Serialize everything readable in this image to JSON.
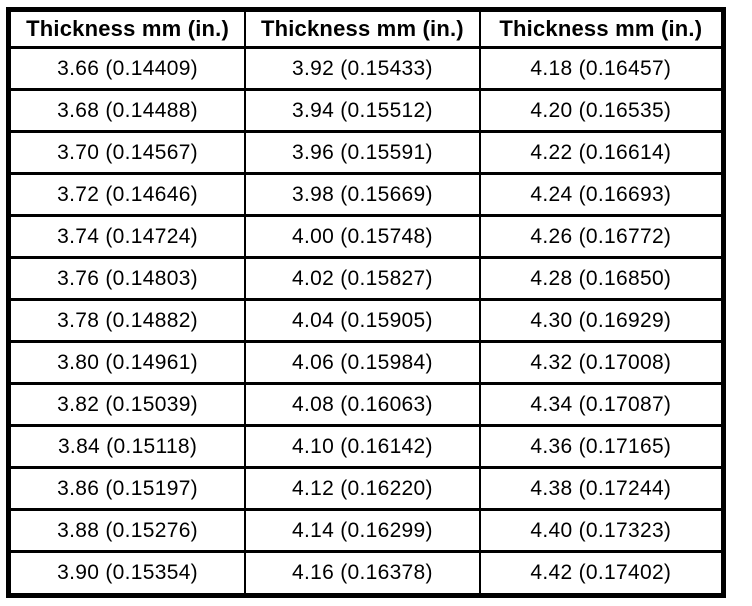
{
  "table": {
    "name": "thickness-conversion-table",
    "columns": [
      {
        "header": "Thickness mm (in.)",
        "values": [
          "3.66 (0.14409)",
          "3.68 (0.14488)",
          "3.70 (0.14567)",
          "3.72 (0.14646)",
          "3.74 (0.14724)",
          "3.76 (0.14803)",
          "3.78 (0.14882)",
          "3.80 (0.14961)",
          "3.82 (0.15039)",
          "3.84 (0.15118)",
          "3.86 (0.15197)",
          "3.88 (0.15276)",
          "3.90 (0.15354)"
        ]
      },
      {
        "header": "Thickness mm (in.)",
        "values": [
          "3.92 (0.15433)",
          "3.94 (0.15512)",
          "3.96 (0.15591)",
          "3.98 (0.15669)",
          "4.00 (0.15748)",
          "4.02 (0.15827)",
          "4.04 (0.15905)",
          "4.06 (0.15984)",
          "4.08 (0.16063)",
          "4.10 (0.16142)",
          "4.12 (0.16220)",
          "4.14 (0.16299)",
          "4.16 (0.16378)"
        ]
      },
      {
        "header": "Thickness mm (in.)",
        "values": [
          "4.18 (0.16457)",
          "4.20 (0.16535)",
          "4.22 (0.16614)",
          "4.24 (0.16693)",
          "4.26 (0.16772)",
          "4.28 (0.16850)",
          "4.30 (0.16929)",
          "4.32 (0.17008)",
          "4.34 (0.17087)",
          "4.36 (0.17165)",
          "4.38 (0.17244)",
          "4.40 (0.17323)",
          "4.42 (0.17402)"
        ]
      }
    ],
    "colors": {
      "text": "#000000",
      "border": "#000000",
      "background": "#ffffff"
    }
  }
}
